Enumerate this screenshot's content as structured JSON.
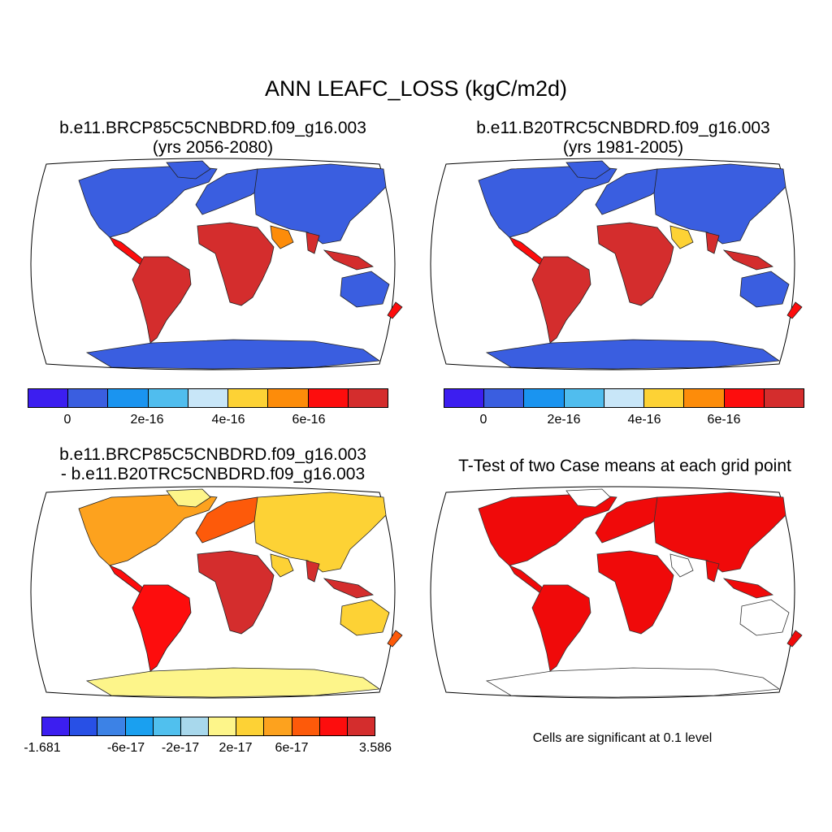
{
  "title": "ANN LEAFC_LOSS (kgC/m2d)",
  "panels": {
    "case1": {
      "title_line1": "b.e11.BRCP85C5CNBDRD.f09_g16.003",
      "title_line2": "(yrs 2056-2080)",
      "colors": [
        "#3c1ef0",
        "#3a5ee0",
        "#1a94f0",
        "#50bdee",
        "#c8e6f8",
        "#fdd235",
        "#fd8c0a",
        "#fd0d0d",
        "#d42d2d"
      ],
      "tick_labels": [
        "0",
        "2e-16",
        "4e-16",
        "6e-16"
      ]
    },
    "case2": {
      "title_line1": "b.e11.B20TRC5CNBDRD.f09_g16.003",
      "title_line2": "(yrs 1981-2005)",
      "colors": [
        "#3c1ef0",
        "#3a5ee0",
        "#1a94f0",
        "#50bdee",
        "#c8e6f8",
        "#fdd235",
        "#fd8c0a",
        "#fd0d0d",
        "#d42d2d"
      ],
      "tick_labels": [
        "0",
        "2e-16",
        "4e-16",
        "6e-16"
      ]
    },
    "diff": {
      "title_line1": "b.e11.BRCP85C5CNBDRD.f09_g16.003",
      "title_line2": "- b.e11.B20TRC5CNBDRD.f09_g16.003",
      "colors": [
        "#3c1ef0",
        "#2850e6",
        "#3c82e6",
        "#1aa0f0",
        "#50c0ee",
        "#a8d8ec",
        "#fdf58a",
        "#fdd235",
        "#fda21e",
        "#fd5a0a",
        "#fd0d0d",
        "#d42d2d"
      ],
      "tick_labels": [
        "-1.681",
        "-6e-17",
        "-2e-17",
        "2e-17",
        "6e-17",
        "3.586"
      ]
    },
    "ttest": {
      "title": "T-Test of two Case means at each grid point",
      "note": "Cells are significant at 0.1 level",
      "color": "#f00a0a"
    }
  }
}
